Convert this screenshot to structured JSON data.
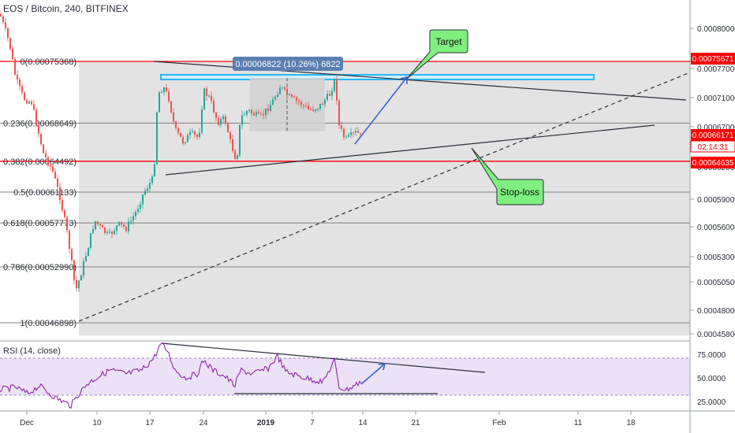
{
  "header": {
    "title": "EOS / Bitcoin, 240, BITFINEX"
  },
  "rsi_panel": {
    "title": "RSI (14, close)"
  },
  "chart_data": [
    {
      "type": "candlestick",
      "title": "EOS / Bitcoin, 240, BITFINEX",
      "x_ticks": [
        "Dec",
        "10",
        "17",
        "24",
        "2019",
        "7",
        "14",
        "21",
        "Feb",
        "11",
        "18"
      ],
      "y_ticks": [
        "0.00080000",
        "0.00077000",
        "0.00071000",
        "0.00067000",
        "0.00062000",
        "0.00059000",
        "0.00056000",
        "0.00053000",
        "0.00050500",
        "0.00048000",
        "0.00045800"
      ],
      "ylim": [
        0.000455,
        0.00083
      ],
      "current_price": {
        "value": "0.00066171",
        "countdown": "02:14:31",
        "color": "#ff0000"
      },
      "price_labels": [
        {
          "value": "0.00075671",
          "color": "#ff0000"
        },
        {
          "value": "0.00064635",
          "color": "#ff0000"
        }
      ],
      "fib_levels": [
        {
          "label": "0(0.00075368)",
          "price": 0.00075368
        },
        {
          "label": "0.236(0.00068649)",
          "price": 0.00068649
        },
        {
          "label": "0.382(0.00064492)",
          "price": 0.00064492
        },
        {
          "label": "0.5(0.00061133)",
          "price": 0.00061133
        },
        {
          "label": "0.618(0.00057773)",
          "price": 0.00057773
        },
        {
          "label": "0.786(0.00052990)",
          "price": 0.0005299
        },
        {
          "label": "1(0.00046898)",
          "price": 0.00046898
        }
      ],
      "measure_label": "0.00006822 (10.26%) 6822",
      "annotations": [
        {
          "text": "Target",
          "color": "#7fef7f"
        },
        {
          "text": "Stop-loss",
          "color": "#7fef7f"
        }
      ],
      "colors": {
        "up": "#26a69a",
        "down": "#ef5350",
        "fib": "#808080",
        "resistance": "#ff0000",
        "zone": "#29b6f6"
      }
    },
    {
      "type": "line",
      "title": "RSI (14, close)",
      "y_ticks": [
        "75.0000",
        "50.0000",
        "25.0000"
      ],
      "ylim": [
        17,
        88
      ],
      "bands": [
        30,
        70
      ],
      "colors": {
        "line": "#8e24aa",
        "band": "#e6d6f7"
      }
    }
  ]
}
